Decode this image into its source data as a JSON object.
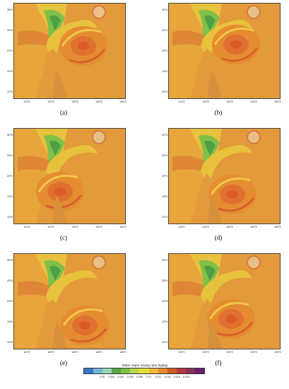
{
  "panels": [
    {
      "label": "(a)"
    },
    {
      "label": "(b)"
    },
    {
      "label": "(c)"
    },
    {
      "label": "(d)"
    },
    {
      "label": "(e)"
    },
    {
      "label": "(f)"
    }
  ],
  "axes": {
    "lat_ticks": [
      "30°N",
      "25°N",
      "20°N",
      "15°N",
      "10°N"
    ],
    "lon_ticks": [
      "110°E",
      "120°E",
      "130°E",
      "140°E",
      "150°E"
    ]
  },
  "colorbar": {
    "title": "Water vapor mixing ratio (kg/kg)",
    "ticks": [
      "0.00",
      "0.002",
      "0.004",
      "0.006",
      "0.008",
      "0.01",
      "0.012",
      "0.014",
      "0.016",
      "0.018"
    ],
    "colors": [
      "#3a78c8",
      "#6fb7dc",
      "#9fd6b8",
      "#55a845",
      "#7ec348",
      "#b8d94a",
      "#e6e03a",
      "#f2b63a",
      "#e68a30",
      "#d45a28",
      "#b03a35",
      "#8a2f5a",
      "#6a1d6a"
    ]
  },
  "field_colors": {
    "background": "#e39a3a",
    "moist_core": "#dc5a26",
    "dry_tongue": "#80c048",
    "very_dry": "#4f9f45",
    "mid": "#e8c23c"
  }
}
